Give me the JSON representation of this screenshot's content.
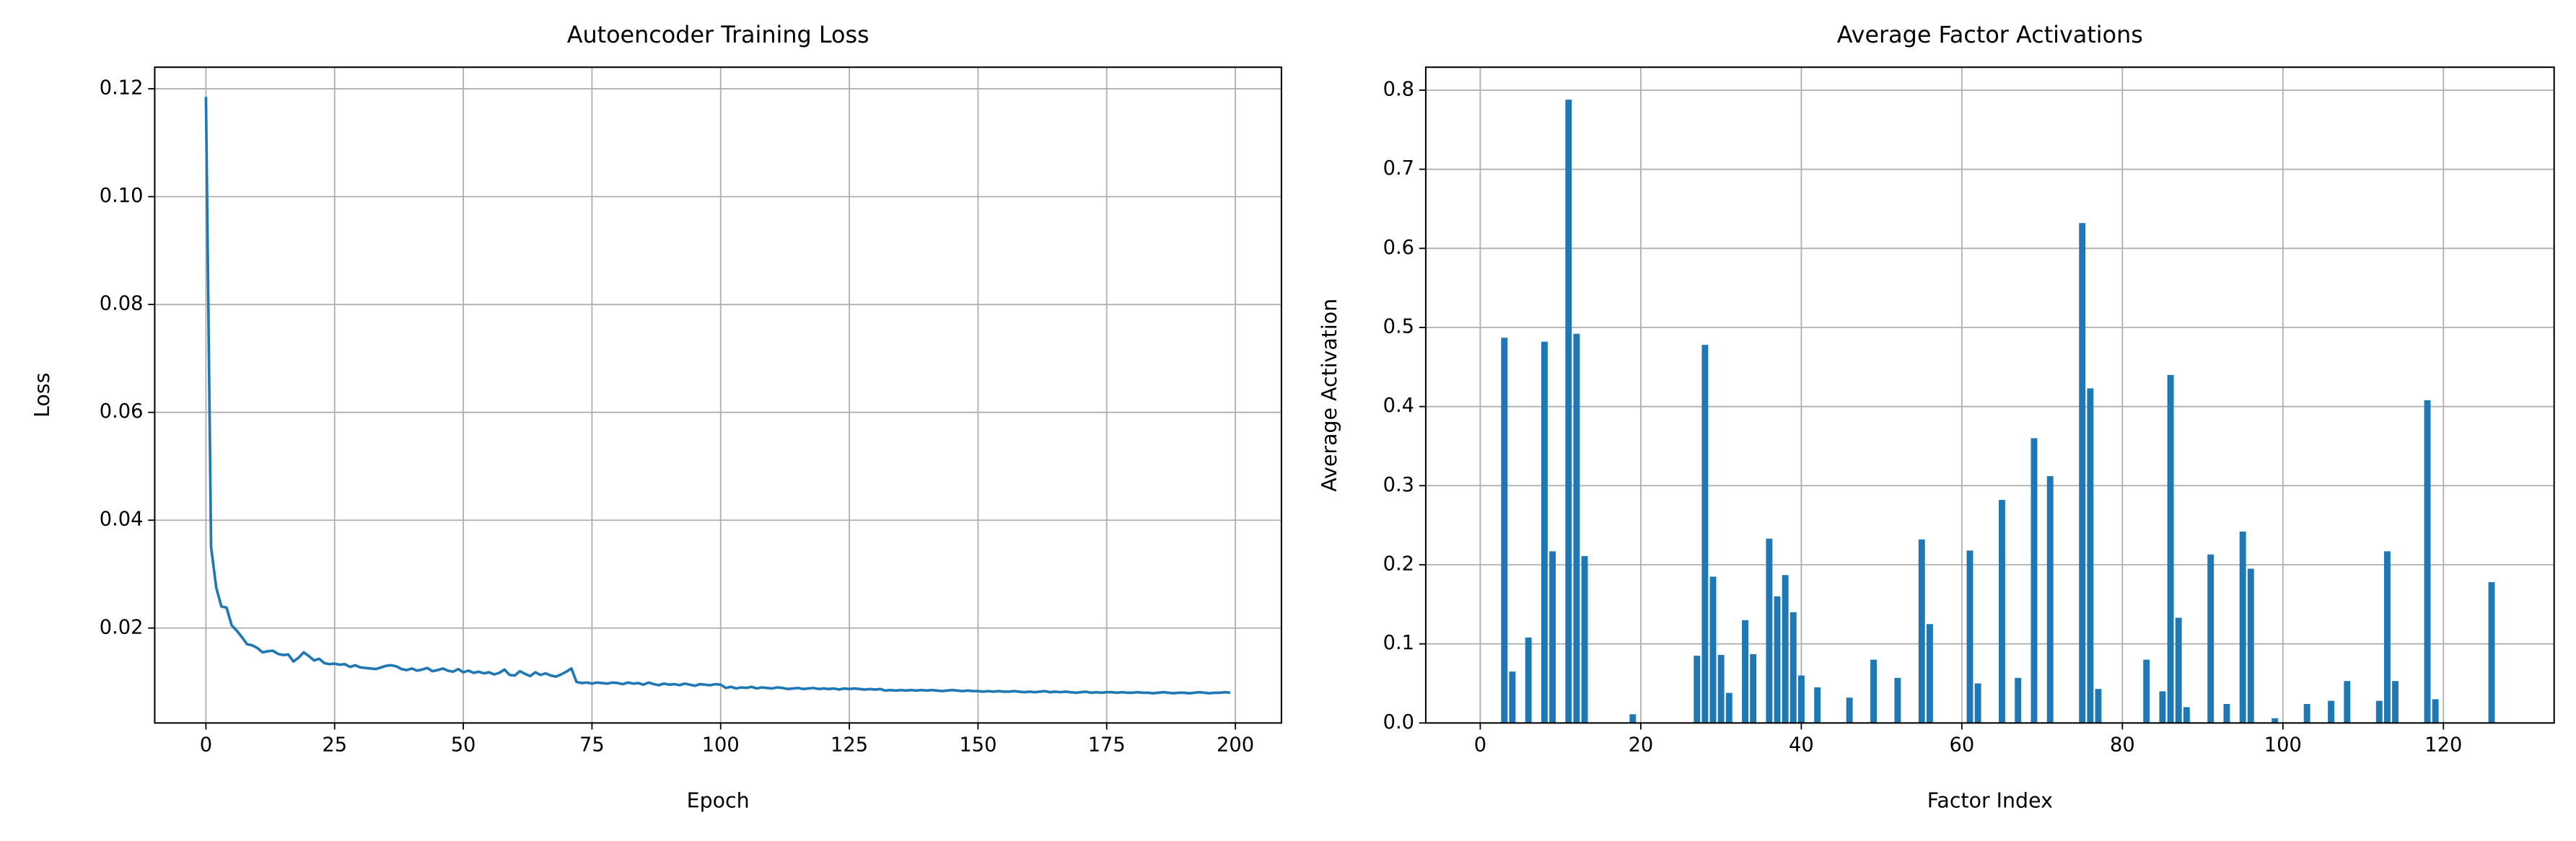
{
  "chart_data": [
    {
      "type": "line",
      "title": "Autoencoder Training Loss",
      "xlabel": "Epoch",
      "ylabel": "Loss",
      "grid": true,
      "x": [
        0,
        1,
        2,
        3,
        4,
        5,
        6,
        7,
        8,
        9,
        10,
        11,
        12,
        13,
        14,
        15,
        16,
        17,
        18,
        19,
        20,
        21,
        22,
        23,
        24,
        25,
        26,
        27,
        28,
        29,
        30,
        31,
        32,
        33,
        34,
        35,
        36,
        37,
        38,
        39,
        40,
        41,
        42,
        43,
        44,
        45,
        46,
        47,
        48,
        49,
        50,
        51,
        52,
        53,
        54,
        55,
        56,
        57,
        58,
        59,
        60,
        61,
        62,
        63,
        64,
        65,
        66,
        67,
        68,
        69,
        70,
        71,
        72,
        73,
        74,
        75,
        76,
        77,
        78,
        79,
        80,
        81,
        82,
        83,
        84,
        85,
        86,
        87,
        88,
        89,
        90,
        91,
        92,
        93,
        94,
        95,
        96,
        97,
        98,
        99,
        100,
        101,
        102,
        103,
        104,
        105,
        106,
        107,
        108,
        109,
        110,
        111,
        112,
        113,
        114,
        115,
        116,
        117,
        118,
        119,
        120,
        121,
        122,
        123,
        124,
        125,
        126,
        127,
        128,
        129,
        130,
        131,
        132,
        133,
        134,
        135,
        136,
        137,
        138,
        139,
        140,
        141,
        142,
        143,
        144,
        145,
        146,
        147,
        148,
        149,
        150,
        151,
        152,
        153,
        154,
        155,
        156,
        157,
        158,
        159,
        160,
        161,
        162,
        163,
        164,
        165,
        166,
        167,
        168,
        169,
        170,
        171,
        172,
        173,
        174,
        175,
        176,
        177,
        178,
        179,
        180,
        181,
        182,
        183,
        184,
        185,
        186,
        187,
        188,
        189,
        190,
        191,
        192,
        193,
        194,
        195,
        196,
        197,
        198,
        199
      ],
      "series": [
        {
          "color": "#1f77b4",
          "values": [
            0.1185,
            0.035,
            0.0275,
            0.024,
            0.0238,
            0.0205,
            0.0195,
            0.0183,
            0.017,
            0.0168,
            0.0163,
            0.0155,
            0.0157,
            0.0158,
            0.0152,
            0.015,
            0.0151,
            0.0138,
            0.0145,
            0.0155,
            0.0148,
            0.014,
            0.0143,
            0.0135,
            0.0133,
            0.0134,
            0.0132,
            0.0133,
            0.0128,
            0.0131,
            0.0127,
            0.0126,
            0.0125,
            0.0124,
            0.0127,
            0.013,
            0.0131,
            0.0129,
            0.0124,
            0.0122,
            0.0125,
            0.0121,
            0.0123,
            0.0126,
            0.012,
            0.0122,
            0.0125,
            0.0121,
            0.0119,
            0.0124,
            0.0118,
            0.0121,
            0.0117,
            0.0119,
            0.0116,
            0.0118,
            0.0114,
            0.0117,
            0.0123,
            0.0113,
            0.0112,
            0.012,
            0.0115,
            0.0111,
            0.0118,
            0.0113,
            0.0116,
            0.0112,
            0.011,
            0.0114,
            0.0119,
            0.0125,
            0.01,
            0.0098,
            0.0099,
            0.0097,
            0.0099,
            0.0098,
            0.0097,
            0.0099,
            0.0098,
            0.0096,
            0.0099,
            0.0097,
            0.0098,
            0.0095,
            0.0099,
            0.0096,
            0.0094,
            0.0097,
            0.0095,
            0.0096,
            0.0094,
            0.0097,
            0.0095,
            0.0093,
            0.0096,
            0.0095,
            0.0094,
            0.0096,
            0.0095,
            0.0089,
            0.0091,
            0.0088,
            0.009,
            0.0089,
            0.0091,
            0.0088,
            0.009,
            0.0089,
            0.0088,
            0.009,
            0.0089,
            0.0087,
            0.0088,
            0.0089,
            0.0087,
            0.0088,
            0.0089,
            0.0087,
            0.0088,
            0.0087,
            0.0088,
            0.0086,
            0.0088,
            0.0087,
            0.0088,
            0.0087,
            0.0086,
            0.0087,
            0.0086,
            0.0087,
            0.0084,
            0.0085,
            0.0084,
            0.0085,
            0.0084,
            0.0085,
            0.0084,
            0.0085,
            0.0084,
            0.0085,
            0.0084,
            0.0083,
            0.0084,
            0.0085,
            0.0084,
            0.0083,
            0.0084,
            0.0083,
            0.0083,
            0.0082,
            0.0083,
            0.0082,
            0.0083,
            0.0082,
            0.0082,
            0.0083,
            0.0082,
            0.0081,
            0.0082,
            0.0081,
            0.0082,
            0.0083,
            0.0081,
            0.0082,
            0.0081,
            0.0082,
            0.0081,
            0.008,
            0.0081,
            0.0082,
            0.008,
            0.0081,
            0.008,
            0.0081,
            0.0081,
            0.008,
            0.0081,
            0.008,
            0.008,
            0.0081,
            0.008,
            0.008,
            0.0079,
            0.008,
            0.0081,
            0.008,
            0.0079,
            0.008,
            0.008,
            0.0079,
            0.008,
            0.0081,
            0.008,
            0.0079,
            0.008,
            0.008,
            0.0081,
            0.008
          ]
        }
      ],
      "xlim": [
        -9.95,
        208.95
      ],
      "ylim": [
        0.0024,
        0.124
      ],
      "xticks": [
        0,
        25,
        50,
        75,
        100,
        125,
        150,
        175,
        200
      ],
      "yticks": [
        0.02,
        0.04,
        0.06,
        0.08,
        {
          "value": 0.1,
          "label": "0.10"
        },
        0.12
      ]
    },
    {
      "type": "bar",
      "title": "Average Factor Activations",
      "xlabel": "Factor Index",
      "ylabel": "Average Activation",
      "grid": true,
      "color": "#1f77b4",
      "x": [
        0,
        1,
        2,
        3,
        4,
        5,
        6,
        7,
        8,
        9,
        10,
        11,
        12,
        13,
        14,
        15,
        16,
        17,
        18,
        19,
        20,
        21,
        22,
        23,
        24,
        25,
        26,
        27,
        28,
        29,
        30,
        31,
        32,
        33,
        34,
        35,
        36,
        37,
        38,
        39,
        40,
        41,
        42,
        43,
        44,
        45,
        46,
        47,
        48,
        49,
        50,
        51,
        52,
        53,
        54,
        55,
        56,
        57,
        58,
        59,
        60,
        61,
        62,
        63,
        64,
        65,
        66,
        67,
        68,
        69,
        70,
        71,
        72,
        73,
        74,
        75,
        76,
        77,
        78,
        79,
        80,
        81,
        82,
        83,
        84,
        85,
        86,
        87,
        88,
        89,
        90,
        91,
        92,
        93,
        94,
        95,
        96,
        97,
        98,
        99,
        100,
        101,
        102,
        103,
        104,
        105,
        106,
        107,
        108,
        109,
        110,
        111,
        112,
        113,
        114,
        115,
        116,
        117,
        118,
        119,
        120,
        121,
        122,
        123,
        124,
        125,
        126,
        127
      ],
      "values": [
        0,
        0,
        0,
        0.487,
        0.065,
        0,
        0.108,
        0,
        0.482,
        0.217,
        0,
        0.788,
        0.492,
        0.211,
        0,
        0,
        0,
        0,
        0,
        0.011,
        0,
        0,
        0,
        0,
        0,
        0,
        0,
        0.085,
        0.478,
        0.185,
        0.086,
        0.038,
        0,
        0.13,
        0.087,
        0,
        0.233,
        0.16,
        0.187,
        0.14,
        0.06,
        0,
        0.045,
        0,
        0,
        0,
        0.032,
        0,
        0,
        0.08,
        0,
        0,
        0.057,
        0,
        0,
        0.232,
        0.125,
        0,
        0,
        0,
        0,
        0.218,
        0.05,
        0,
        0,
        0.282,
        0,
        0.057,
        0,
        0.36,
        0,
        0.312,
        0,
        0,
        0,
        0.632,
        0.423,
        0.043,
        0,
        0,
        0,
        0,
        0,
        0.08,
        0,
        0.04,
        0.44,
        0.133,
        0.02,
        0,
        0,
        0.213,
        0,
        0.024,
        0,
        0.242,
        0.195,
        0,
        0,
        0.006,
        0,
        0,
        0,
        0.024,
        0,
        0,
        0.028,
        0,
        0.053,
        0,
        0,
        0,
        0.028,
        0.217,
        0.053,
        0,
        0,
        0,
        0.408,
        0.03,
        0,
        0,
        0,
        0,
        0,
        0,
        0.178,
        0
      ],
      "xlim": [
        -6.79,
        133.79
      ],
      "ylim": [
        0,
        0.829
      ],
      "xticks": [
        0,
        20,
        40,
        60,
        80,
        100,
        120
      ],
      "yticks": [
        {
          "value": 0,
          "label": "0.0"
        },
        0.1,
        0.2,
        0.3,
        0.4,
        0.5,
        0.6,
        0.7,
        0.8
      ]
    }
  ]
}
